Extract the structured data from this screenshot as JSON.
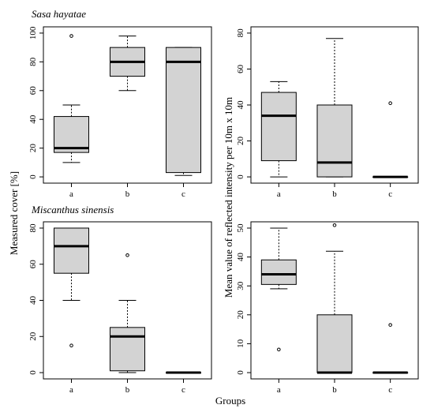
{
  "figure": {
    "xlabel": "Groups",
    "ylabel_left": "Measured cover [%]",
    "ylabel_right": "Mean value of reflected intensity per 10m x 10m"
  },
  "colors": {
    "box_fill": "#d3d3d3",
    "stroke": "#000000",
    "background": "#ffffff"
  },
  "chart_data": [
    {
      "type": "boxplot",
      "title": "Sasa hayatae",
      "ylabel": "Measured cover [%]",
      "ylim": [
        0,
        100
      ],
      "yticks": [
        0,
        20,
        40,
        60,
        80,
        100
      ],
      "categories": [
        "a",
        "b",
        "c"
      ],
      "boxes": [
        {
          "group": "a",
          "whisker_low": 10,
          "q1": 17,
          "median": 20,
          "q3": 42,
          "whisker_high": 50,
          "outliers": [
            98
          ]
        },
        {
          "group": "b",
          "whisker_low": 60,
          "q1": 70,
          "median": 80,
          "q3": 90,
          "whisker_high": 98,
          "outliers": []
        },
        {
          "group": "c",
          "whisker_low": 1,
          "q1": 3,
          "median": 80,
          "q3": 90,
          "whisker_high": 90,
          "outliers": []
        }
      ]
    },
    {
      "type": "boxplot",
      "title": "",
      "ylabel": "Mean value of reflected intensity per 10m x 10m",
      "ylim": [
        0,
        80
      ],
      "yticks": [
        0,
        20,
        40,
        60,
        80
      ],
      "categories": [
        "a",
        "b",
        "c"
      ],
      "boxes": [
        {
          "group": "a",
          "whisker_low": 0,
          "q1": 9,
          "median": 34,
          "q3": 47,
          "whisker_high": 53,
          "outliers": []
        },
        {
          "group": "b",
          "whisker_low": 0,
          "q1": 0,
          "median": 8,
          "q3": 40,
          "whisker_high": 77,
          "outliers": []
        },
        {
          "group": "c",
          "whisker_low": 0,
          "q1": 0,
          "median": 0,
          "q3": 0,
          "whisker_high": 0,
          "outliers": [
            41
          ]
        }
      ]
    },
    {
      "type": "boxplot",
      "title": "Miscanthus sinensis",
      "ylabel": "Measured cover [%]",
      "ylim": [
        0,
        80
      ],
      "yticks": [
        0,
        20,
        40,
        60,
        80
      ],
      "categories": [
        "a",
        "b",
        "c"
      ],
      "boxes": [
        {
          "group": "a",
          "whisker_low": 40,
          "q1": 55,
          "median": 70,
          "q3": 80,
          "whisker_high": 80,
          "outliers": [
            15
          ]
        },
        {
          "group": "b",
          "whisker_low": 0,
          "q1": 1,
          "median": 20,
          "q3": 25,
          "whisker_high": 40,
          "outliers": [
            65
          ]
        },
        {
          "group": "c",
          "whisker_low": 0,
          "q1": 0,
          "median": 0,
          "q3": 0,
          "whisker_high": 0,
          "outliers": []
        }
      ]
    },
    {
      "type": "boxplot",
      "title": "",
      "ylabel": "Mean value of reflected intensity per 10m x 10m",
      "ylim": [
        0,
        50
      ],
      "yticks": [
        0,
        10,
        20,
        30,
        40,
        50
      ],
      "categories": [
        "a",
        "b",
        "c"
      ],
      "boxes": [
        {
          "group": "a",
          "whisker_low": 29,
          "q1": 30.5,
          "median": 34,
          "q3": 39,
          "whisker_high": 50,
          "outliers": [
            8
          ]
        },
        {
          "group": "b",
          "whisker_low": 0,
          "q1": 0,
          "median": 0,
          "q3": 20,
          "whisker_high": 42,
          "outliers": [
            51
          ]
        },
        {
          "group": "c",
          "whisker_low": 0,
          "q1": 0,
          "median": 0,
          "q3": 0,
          "whisker_high": 0,
          "outliers": [
            16.5
          ]
        }
      ]
    }
  ]
}
